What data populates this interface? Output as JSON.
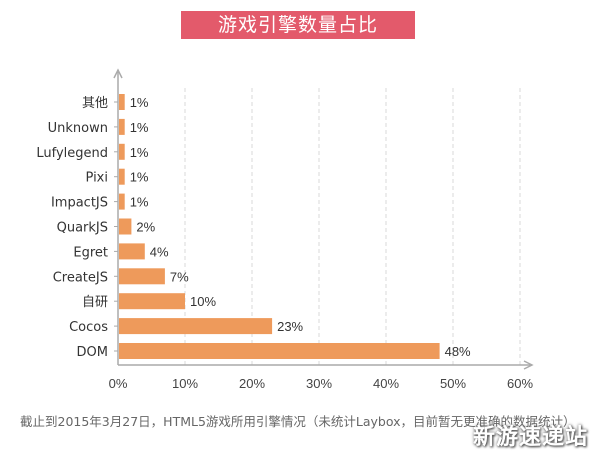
{
  "title": "游戏引擎数量占比",
  "footnote": "截止到2015年3月27日，HTML5游戏所用引擎情况（未统计Laybox，目前暂无更准确的数据统计）",
  "watermark": "新游速递站",
  "colors": {
    "bar": "#ee9a5b",
    "title_bg": "#e35a6b",
    "axis": "#aaaaaa",
    "grid": "#d8d8d8"
  },
  "chart_data": {
    "type": "bar",
    "orientation": "horizontal",
    "categories": [
      "其他",
      "Unknown",
      "Lufylegend",
      "Pixi",
      "ImpactJS",
      "QuarkJS",
      "Egret",
      "CreateJS",
      "自研",
      "Cocos",
      "DOM"
    ],
    "values": [
      1,
      1,
      1,
      1,
      1,
      2,
      4,
      7,
      10,
      23,
      48
    ],
    "value_labels": [
      "1%",
      "1%",
      "1%",
      "1%",
      "1%",
      "2%",
      "4%",
      "7%",
      "10%",
      "23%",
      "48%"
    ],
    "xlim": [
      0,
      60
    ],
    "x_ticks": [
      0,
      10,
      20,
      30,
      40,
      50,
      60
    ],
    "x_tick_labels": [
      "0%",
      "10%",
      "20%",
      "30%",
      "40%",
      "50%",
      "60%"
    ],
    "grid": "vertical-dashed",
    "title": "游戏引擎数量占比"
  }
}
